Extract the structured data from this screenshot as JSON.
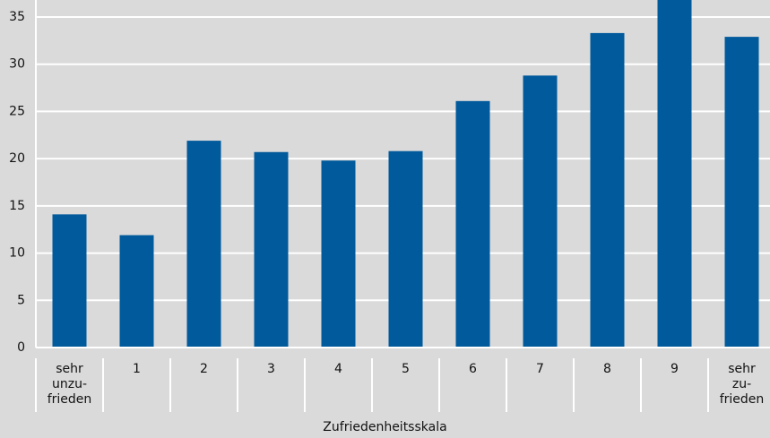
{
  "chart_data": {
    "type": "bar",
    "x_label": "Zufriedenheitsskala",
    "categories": [
      "sehr\nunzu-\nfrieden",
      "1",
      "2",
      "3",
      "4",
      "5",
      "6",
      "7",
      "8",
      "9",
      "sehr\nzu-\nfrieden"
    ],
    "values": [
      14.1,
      11.9,
      21.9,
      20.7,
      19.8,
      20.8,
      26.1,
      28.8,
      33.3,
      37,
      32.9
    ],
    "color": "#005a9c",
    "ylim": [
      0,
      36.8
    ],
    "yticks": [
      0,
      5,
      10,
      15,
      20,
      25,
      30,
      35
    ],
    "grid": true
  }
}
